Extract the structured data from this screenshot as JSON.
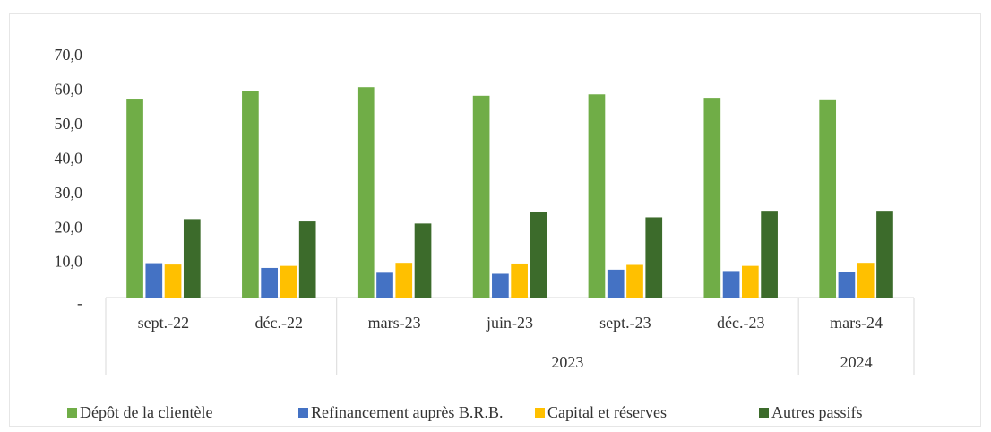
{
  "chart_data": {
    "type": "bar",
    "categories": [
      "sept.-22",
      "déc.-22",
      "mars-23",
      "juin-23",
      "sept.-23",
      "déc.-23",
      "mars-24"
    ],
    "category_groups": [
      null,
      null,
      "2023",
      "2023",
      "2023",
      "2023",
      "2024"
    ],
    "series": [
      {
        "name": "Dépôt de la clientèle",
        "color": "#70ad47",
        "values": [
          57.5,
          60.1,
          61.1,
          58.6,
          59.0,
          58.0,
          57.3
        ]
      },
      {
        "name": "Refinancement auprès B.R.B.",
        "color": "#4472c4",
        "values": [
          10.0,
          8.6,
          7.2,
          6.9,
          8.1,
          7.7,
          7.4
        ]
      },
      {
        "name": "Capital et réserves",
        "color": "#ffc000",
        "values": [
          9.6,
          9.2,
          10.1,
          9.9,
          9.5,
          9.2,
          10.1
        ]
      },
      {
        "name": "Autres passifs",
        "color": "#3c6b2b",
        "values": [
          22.8,
          22.1,
          21.5,
          24.8,
          23.3,
          25.2,
          25.2
        ]
      }
    ],
    "ylim": [
      0,
      70
    ],
    "yticks": [
      {
        "value": 0,
        "label": "-"
      },
      {
        "value": 10,
        "label": "10,0"
      },
      {
        "value": 20,
        "label": "20,0"
      },
      {
        "value": 30,
        "label": "30,0"
      },
      {
        "value": 40,
        "label": "40,0"
      },
      {
        "value": 50,
        "label": "50,0"
      },
      {
        "value": 60,
        "label": "60,0"
      },
      {
        "value": 70,
        "label": "70,0"
      }
    ],
    "grid": false,
    "legend": "bottom"
  }
}
